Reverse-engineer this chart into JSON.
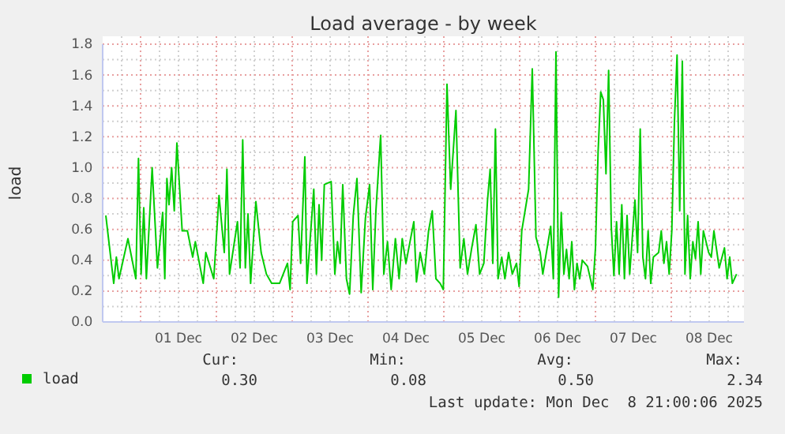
{
  "chart_data": {
    "type": "line",
    "title": "Load average - by week",
    "ylabel": "load",
    "legend": "bottom",
    "grid": true,
    "marker": "none",
    "line_style": "solid",
    "xlim": [
      "2025-11-30T12:00",
      "2025-12-08T23:00"
    ],
    "ylim": [
      0,
      1.8
    ],
    "yticks": [
      {
        "value": 0,
        "label": "0.0"
      },
      {
        "value": 0.1,
        "label": null
      },
      0.2,
      {
        "value": 0.3,
        "label": null
      },
      0.4,
      {
        "value": 0.5,
        "label": null
      },
      0.6,
      {
        "value": 0.7,
        "label": null
      },
      0.8,
      {
        "value": 0.9,
        "label": null
      },
      {
        "value": 1,
        "label": "1.0"
      },
      {
        "value": 1.1,
        "label": null
      },
      1.2,
      {
        "value": 1.3,
        "label": null
      },
      1.4,
      {
        "value": 1.5,
        "label": null
      },
      1.6,
      {
        "value": 1.7,
        "label": null
      },
      1.8
    ],
    "xticks": [
      {
        "value": "2025-11-30T18:00",
        "label": null
      },
      {
        "value": "2025-12-01T00:00",
        "label": null
      },
      {
        "value": "2025-12-01T06:00",
        "label": null
      },
      {
        "value": "2025-12-01T12:00",
        "label": "01 Dec"
      },
      {
        "value": "2025-12-01T18:00",
        "label": null
      },
      {
        "value": "2025-12-02T00:00",
        "label": null
      },
      {
        "value": "2025-12-02T06:00",
        "label": null
      },
      {
        "value": "2025-12-02T12:00",
        "label": "02 Dec"
      },
      {
        "value": "2025-12-02T18:00",
        "label": null
      },
      {
        "value": "2025-12-03T00:00",
        "label": null
      },
      {
        "value": "2025-12-03T06:00",
        "label": null
      },
      {
        "value": "2025-12-03T12:00",
        "label": "03 Dec"
      },
      {
        "value": "2025-12-03T18:00",
        "label": null
      },
      {
        "value": "2025-12-04T00:00",
        "label": null
      },
      {
        "value": "2025-12-04T06:00",
        "label": null
      },
      {
        "value": "2025-12-04T12:00",
        "label": "04 Dec"
      },
      {
        "value": "2025-12-04T18:00",
        "label": null
      },
      {
        "value": "2025-12-05T00:00",
        "label": null
      },
      {
        "value": "2025-12-05T06:00",
        "label": null
      },
      {
        "value": "2025-12-05T12:00",
        "label": "05 Dec"
      },
      {
        "value": "2025-12-05T18:00",
        "label": null
      },
      {
        "value": "2025-12-06T00:00",
        "label": null
      },
      {
        "value": "2025-12-06T06:00",
        "label": null
      },
      {
        "value": "2025-12-06T12:00",
        "label": "06 Dec"
      },
      {
        "value": "2025-12-06T18:00",
        "label": null
      },
      {
        "value": "2025-12-07T00:00",
        "label": null
      },
      {
        "value": "2025-12-07T06:00",
        "label": null
      },
      {
        "value": "2025-12-07T12:00",
        "label": "07 Dec"
      },
      {
        "value": "2025-12-07T18:00",
        "label": null
      },
      {
        "value": "2025-12-08T00:00",
        "label": null
      },
      {
        "value": "2025-12-08T06:00",
        "label": null
      },
      {
        "value": "2025-12-08T12:00",
        "label": "08 Dec"
      },
      {
        "value": "2025-12-08T18:00",
        "label": null
      }
    ],
    "annotations": [
      "Cur:",
      "0.30",
      "Min:",
      "0.08",
      "Avg:",
      "0.50",
      "Max:",
      "2.34",
      "Last update: Mon Dec  8 21:00:06 2025"
    ],
    "x": [
      "2025-11-30T13:00",
      "2025-11-30T15:30",
      "2025-11-30T16:20",
      "2025-11-30T17:10",
      "2025-11-30T20:00",
      "2025-11-30T22:30",
      "2025-11-30T23:20",
      "2025-12-01T00:10",
      "2025-12-01T01:00",
      "2025-12-01T01:50",
      "2025-12-01T03:40",
      "2025-12-01T05:20",
      "2025-12-01T07:00",
      "2025-12-01T07:40",
      "2025-12-01T08:20",
      "2025-12-01T09:00",
      "2025-12-01T09:50",
      "2025-12-01T10:40",
      "2025-12-01T11:30",
      "2025-12-01T13:10",
      "2025-12-01T14:50",
      "2025-12-01T16:30",
      "2025-12-01T17:20",
      "2025-12-01T19:50",
      "2025-12-01T20:40",
      "2025-12-01T23:10",
      "2025-12-02T00:50",
      "2025-12-02T02:30",
      "2025-12-02T03:20",
      "2025-12-02T04:10",
      "2025-12-02T06:40",
      "2025-12-02T07:30",
      "2025-12-02T08:20",
      "2025-12-02T09:10",
      "2025-12-02T10:00",
      "2025-12-02T10:50",
      "2025-12-02T12:30",
      "2025-12-02T14:10",
      "2025-12-02T15:50",
      "2025-12-02T17:30",
      "2025-12-02T20:00",
      "2025-12-02T22:30",
      "2025-12-02T23:20",
      "2025-12-03T00:10",
      "2025-12-03T01:50",
      "2025-12-03T02:40",
      "2025-12-03T04:00",
      "2025-12-03T04:40",
      "2025-12-03T06:50",
      "2025-12-03T07:40",
      "2025-12-03T08:30",
      "2025-12-03T09:20",
      "2025-12-03T10:10",
      "2025-12-03T12:20",
      "2025-12-03T13:30",
      "2025-12-03T14:20",
      "2025-12-03T15:10",
      "2025-12-03T16:00",
      "2025-12-03T17:10",
      "2025-12-03T18:10",
      "2025-12-03T19:20",
      "2025-12-03T20:30",
      "2025-12-03T21:50",
      "2025-12-03T23:10",
      "2025-12-04T00:30",
      "2025-12-04T01:30",
      "2025-12-04T02:30",
      "2025-12-04T04:00",
      "2025-12-04T05:00",
      "2025-12-04T06:10",
      "2025-12-04T07:20",
      "2025-12-04T08:40",
      "2025-12-04T09:50",
      "2025-12-04T10:50",
      "2025-12-04T12:00",
      "2025-12-04T14:30",
      "2025-12-04T15:20",
      "2025-12-04T16:30",
      "2025-12-04T17:50",
      "2025-12-04T19:10",
      "2025-12-04T20:20",
      "2025-12-04T21:30",
      "2025-12-04T22:50",
      "2025-12-04T23:50",
      "2025-12-05T01:00",
      "2025-12-05T02:10",
      "2025-12-05T03:50",
      "2025-12-05T05:10",
      "2025-12-05T06:20",
      "2025-12-05T07:30",
      "2025-12-05T08:50",
      "2025-12-05T10:10",
      "2025-12-05T11:20",
      "2025-12-05T12:40",
      "2025-12-05T13:50",
      "2025-12-05T14:40",
      "2025-12-05T15:30",
      "2025-12-05T16:20",
      "2025-12-05T17:10",
      "2025-12-05T18:20",
      "2025-12-05T19:20",
      "2025-12-05T20:30",
      "2025-12-05T21:40",
      "2025-12-05T23:00",
      "2025-12-05T23:50",
      "2025-12-06T00:40",
      "2025-12-06T02:50",
      "2025-12-06T04:00",
      "2025-12-06T05:10",
      "2025-12-06T06:30",
      "2025-12-06T07:20",
      "2025-12-06T09:50",
      "2025-12-06T10:40",
      "2025-12-06T11:30",
      "2025-12-06T12:20",
      "2025-12-06T13:10",
      "2025-12-06T14:00",
      "2025-12-06T14:50",
      "2025-12-06T15:40",
      "2025-12-06T16:30",
      "2025-12-06T17:20",
      "2025-12-06T18:10",
      "2025-12-06T19:00",
      "2025-12-06T19:50",
      "2025-12-06T21:30",
      "2025-12-06T23:10",
      "2025-12-07T00:00",
      "2025-12-07T00:50",
      "2025-12-07T01:40",
      "2025-12-07T02:30",
      "2025-12-07T03:20",
      "2025-12-07T04:10",
      "2025-12-07T05:00",
      "2025-12-07T05:50",
      "2025-12-07T06:40",
      "2025-12-07T07:30",
      "2025-12-07T08:20",
      "2025-12-07T09:10",
      "2025-12-07T10:00",
      "2025-12-07T10:50",
      "2025-12-07T12:30",
      "2025-12-07T13:20",
      "2025-12-07T14:10",
      "2025-12-07T15:00",
      "2025-12-07T15:50",
      "2025-12-07T16:40",
      "2025-12-07T17:30",
      "2025-12-07T18:20",
      "2025-12-07T20:00",
      "2025-12-07T20:50",
      "2025-12-07T21:40",
      "2025-12-07T22:30",
      "2025-12-07T23:20",
      "2025-12-08T00:10",
      "2025-12-08T01:00",
      "2025-12-08T01:50",
      "2025-12-08T02:40",
      "2025-12-08T03:30",
      "2025-12-08T04:20",
      "2025-12-08T05:10",
      "2025-12-08T06:00",
      "2025-12-08T06:50",
      "2025-12-08T07:40",
      "2025-12-08T08:30",
      "2025-12-08T09:20",
      "2025-12-08T10:10",
      "2025-12-08T11:50",
      "2025-12-08T12:40",
      "2025-12-08T13:30",
      "2025-12-08T15:10",
      "2025-12-08T16:50",
      "2025-12-08T17:40",
      "2025-12-08T18:30",
      "2025-12-08T19:20",
      "2025-12-08T20:40"
    ],
    "series": [
      {
        "name": "load",
        "color": "#00cc00",
        "values": [
          0.69,
          0.25,
          0.42,
          0.28,
          0.54,
          0.28,
          1.06,
          0.31,
          0.74,
          0.28,
          1.0,
          0.35,
          0.71,
          0.28,
          0.93,
          0.76,
          1.0,
          0.72,
          1.16,
          0.59,
          0.59,
          0.42,
          0.52,
          0.25,
          0.45,
          0.28,
          0.82,
          0.45,
          0.99,
          0.31,
          0.65,
          0.35,
          1.18,
          0.35,
          0.7,
          0.25,
          0.78,
          0.45,
          0.31,
          0.25,
          0.25,
          0.38,
          0.21,
          0.65,
          0.69,
          0.38,
          1.07,
          0.25,
          0.86,
          0.31,
          0.76,
          0.4,
          0.89,
          0.91,
          0.31,
          0.52,
          0.38,
          0.89,
          0.28,
          0.18,
          0.69,
          0.93,
          0.19,
          0.67,
          0.89,
          0.21,
          0.72,
          1.21,
          0.31,
          0.52,
          0.21,
          0.54,
          0.28,
          0.54,
          0.38,
          0.65,
          0.26,
          0.45,
          0.31,
          0.59,
          0.72,
          0.28,
          0.25,
          0.21,
          1.54,
          0.86,
          1.37,
          0.35,
          0.54,
          0.31,
          0.48,
          0.63,
          0.31,
          0.38,
          0.79,
          0.99,
          0.38,
          1.25,
          0.28,
          0.42,
          0.28,
          0.45,
          0.31,
          0.38,
          0.23,
          0.59,
          0.86,
          1.64,
          0.55,
          0.45,
          0.31,
          0.62,
          0.28,
          1.75,
          0.16,
          0.71,
          0.31,
          0.47,
          0.28,
          0.52,
          0.21,
          0.38,
          0.28,
          0.4,
          0.36,
          0.21,
          0.48,
          1.1,
          1.49,
          1.44,
          0.96,
          1.63,
          0.62,
          0.3,
          0.65,
          0.31,
          0.76,
          0.28,
          0.69,
          0.31,
          0.79,
          0.45,
          1.25,
          0.42,
          0.28,
          0.59,
          0.25,
          0.42,
          0.45,
          0.59,
          0.38,
          0.52,
          0.31,
          0.59,
          1.3,
          1.73,
          0.72,
          1.69,
          0.31,
          0.69,
          0.28,
          0.52,
          0.41,
          0.65,
          0.31,
          0.59,
          0.45,
          0.42,
          0.59,
          0.35,
          0.48,
          0.28,
          0.42,
          0.25,
          0.31
        ]
      }
    ]
  }
}
